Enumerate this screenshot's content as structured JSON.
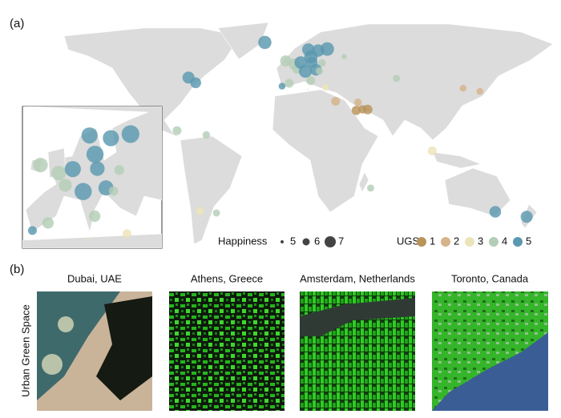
{
  "panel_a": {
    "label": "(a)",
    "cities": [
      {
        "lon": -22,
        "lat": 64,
        "ugs": 5,
        "happiness": 7.5
      },
      {
        "lon": -79.4,
        "lat": 43.7,
        "ugs": 5,
        "happiness": 7.2
      },
      {
        "lon": -74,
        "lat": 40.7,
        "ugs": 5,
        "happiness": 6.9
      },
      {
        "lon": -88,
        "lat": 13,
        "ugs": 4,
        "happiness": 6.4
      },
      {
        "lon": -66,
        "lat": 10.5,
        "ugs": 4,
        "happiness": 6.1
      },
      {
        "lon": -70.6,
        "lat": -33.4,
        "ugs": 3,
        "happiness": 6.2
      },
      {
        "lon": -58.4,
        "lat": -34.6,
        "ugs": 4,
        "happiness": 6.0
      },
      {
        "lon": 0,
        "lat": 51.5,
        "ugs": 4,
        "happiness": 7.0
      },
      {
        "lon": -6.3,
        "lat": 53.3,
        "ugs": 4,
        "happiness": 7.0
      },
      {
        "lon": 2.3,
        "lat": 48.8,
        "ugs": 4,
        "happiness": 6.7
      },
      {
        "lon": -3.7,
        "lat": 40.4,
        "ugs": 4,
        "happiness": 6.4
      },
      {
        "lon": -9.1,
        "lat": 38.7,
        "ugs": 5,
        "happiness": 5.9
      },
      {
        "lon": 10.7,
        "lat": 59.9,
        "ugs": 5,
        "happiness": 7.3
      },
      {
        "lon": 18.1,
        "lat": 59.3,
        "ugs": 5,
        "happiness": 7.3
      },
      {
        "lon": 24.9,
        "lat": 60.2,
        "ugs": 5,
        "happiness": 7.6
      },
      {
        "lon": 12.6,
        "lat": 55.7,
        "ugs": 5,
        "happiness": 7.5
      },
      {
        "lon": 13.4,
        "lat": 52.5,
        "ugs": 5,
        "happiness": 7.0
      },
      {
        "lon": 4.9,
        "lat": 52.4,
        "ugs": 5,
        "happiness": 7.3
      },
      {
        "lon": 21,
        "lat": 52.2,
        "ugs": 4,
        "happiness": 6.1
      },
      {
        "lon": 16.4,
        "lat": 48.2,
        "ugs": 5,
        "happiness": 7.1
      },
      {
        "lon": 8.5,
        "lat": 47.4,
        "ugs": 5,
        "happiness": 7.5
      },
      {
        "lon": 12.5,
        "lat": 41.9,
        "ugs": 4,
        "happiness": 6.4
      },
      {
        "lon": 23.7,
        "lat": 38,
        "ugs": 3,
        "happiness": 5.9
      },
      {
        "lon": 19,
        "lat": 47.5,
        "ugs": 4,
        "happiness": 6.0
      },
      {
        "lon": 37.6,
        "lat": 55.8,
        "ugs": 4,
        "happiness": 5.5
      },
      {
        "lon": 10.2,
        "lat": 36.8,
        "ugs": 3,
        "happiness": 4.6
      },
      {
        "lon": 31.2,
        "lat": 30,
        "ugs": 2,
        "happiness": 6.4
      },
      {
        "lon": 46.7,
        "lat": 24.7,
        "ugs": 1,
        "happiness": 6.5
      },
      {
        "lon": 55.3,
        "lat": 25.2,
        "ugs": 1,
        "happiness": 6.6
      },
      {
        "lon": 51.5,
        "lat": 25.3,
        "ugs": 1,
        "happiness": 6.3
      },
      {
        "lon": 48,
        "lat": 29.4,
        "ugs": 2,
        "happiness": 6.1
      },
      {
        "lon": 76.9,
        "lat": 43.2,
        "ugs": 4,
        "happiness": 6.0
      },
      {
        "lon": 127,
        "lat": 37.5,
        "ugs": 2,
        "happiness": 5.9
      },
      {
        "lon": 139.7,
        "lat": 35.7,
        "ugs": 2,
        "happiness": 5.9
      },
      {
        "lon": 103.8,
        "lat": 1.35,
        "ugs": 3,
        "happiness": 6.4
      },
      {
        "lon": 57.5,
        "lat": -20.2,
        "ugs": 4,
        "happiness": 6.0
      },
      {
        "lon": 151.2,
        "lat": -33.9,
        "ugs": 5,
        "happiness": 7.1
      },
      {
        "lon": 174.8,
        "lat": -36.8,
        "ugs": 5,
        "happiness": 7.2
      }
    ],
    "happiness_legend": {
      "title": "Happiness",
      "values": [
        5,
        6,
        7
      ]
    },
    "ugs_legend": {
      "title": "UGS",
      "values": [
        1,
        2,
        3,
        4,
        5
      ],
      "colors": [
        "#b8935a",
        "#d6b38a",
        "#ebe4b9",
        "#b4cdb7",
        "#5a98b0"
      ]
    }
  },
  "panel_b": {
    "label": "(b)",
    "row_label": "Urban Green Space",
    "images": [
      "Dubai, UAE",
      "Athens, Greece",
      "Amsterdam, Netherlands",
      "Toronto, Canada"
    ]
  }
}
